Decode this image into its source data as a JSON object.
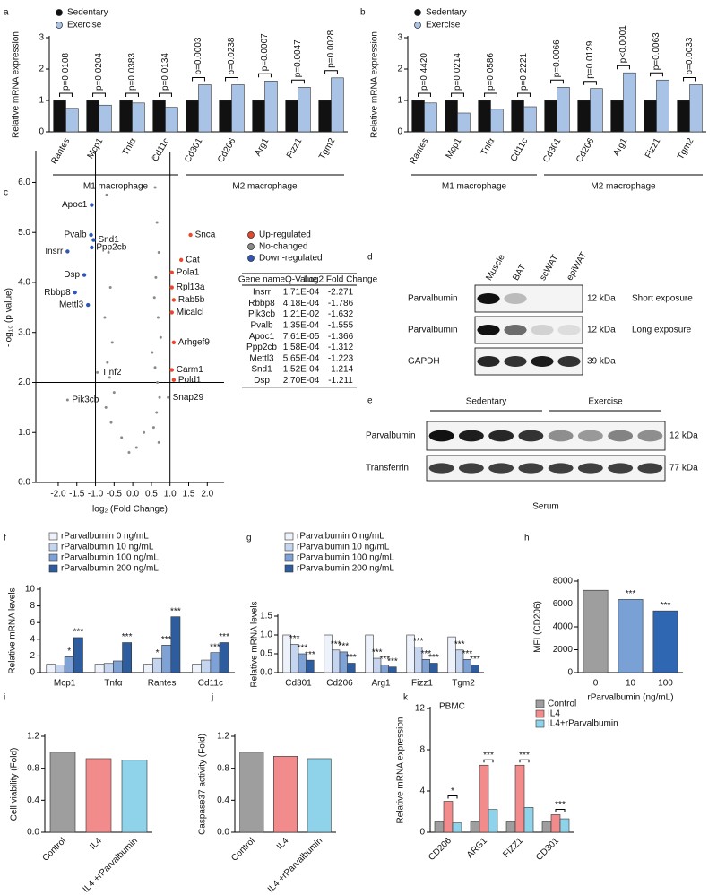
{
  "chart_data": [
    {
      "type": "bar",
      "panel": "a",
      "ylabel": "Relative mRNA expression",
      "groups": [
        {
          "label": "M1 macrophage",
          "categories": [
            "Rantes",
            "Mcp1",
            "Tnfα",
            "Cd11c"
          ]
        },
        {
          "label": "M2 macrophage",
          "categories": [
            "Cd301",
            "Cd206",
            "Arg1",
            "Fizz1",
            "Tgm2"
          ]
        }
      ],
      "series": [
        {
          "name": "Sedentary",
          "color": "#111111",
          "values": [
            1,
            1,
            1,
            1,
            1,
            1,
            1,
            1,
            1
          ]
        },
        {
          "name": "Exercise",
          "color": "#a9c3e6",
          "values": [
            0.75,
            0.85,
            0.92,
            0.78,
            1.5,
            1.5,
            1.62,
            1.42,
            1.72
          ]
        }
      ],
      "annotations": [
        "p=0.0108",
        "p=0.0204",
        "p=0.0383",
        "p=0.0134",
        "p=0.0003",
        "p=0.0238",
        "p=0.0007",
        "p=0.0047",
        "p=0.0028"
      ],
      "ylim": [
        0,
        3
      ],
      "yticks": [
        0,
        1,
        2,
        3
      ]
    },
    {
      "type": "bar",
      "panel": "b",
      "ylabel": "Relative mRNA expression",
      "groups": [
        {
          "label": "M1 macrophage",
          "categories": [
            "Rantes",
            "Mcp1",
            "Tnfα",
            "Cd11c"
          ]
        },
        {
          "label": "M2 macrophage",
          "categories": [
            "Cd301",
            "Cd206",
            "Arg1",
            "Fizz1",
            "Tgm2"
          ]
        }
      ],
      "series": [
        {
          "name": "Sedentary",
          "color": "#111111",
          "values": [
            1,
            1,
            1,
            1,
            1,
            1,
            1,
            1,
            1
          ]
        },
        {
          "name": "Exercise",
          "color": "#a9c3e6",
          "values": [
            0.92,
            0.6,
            0.72,
            0.8,
            1.42,
            1.38,
            1.88,
            1.65,
            1.5
          ]
        }
      ],
      "annotations": [
        "p=0.4420",
        "p=0.0214",
        "p=0.0586",
        "p=0.2221",
        "p=0.0066",
        "p=0.0129",
        "p<0.0001",
        "p=0.0063",
        "p=0.0033"
      ],
      "ylim": [
        0,
        3
      ],
      "yticks": [
        0,
        1,
        2,
        3
      ]
    },
    {
      "type": "scatter",
      "panel": "c",
      "xlabel": "log₂ (Fold Change)",
      "ylabel": "-log₁₀ (p value)",
      "highlight": "Pvalb",
      "xlim": [
        -2.6,
        2.45
      ],
      "xticks": [
        {
          "value": -2,
          "label": "-2.0"
        },
        -1.5,
        {
          "value": -1,
          "label": "-1.0"
        },
        -0.5,
        {
          "value": 0,
          "label": "0.0"
        },
        0.5,
        {
          "value": 1,
          "label": "1.0"
        },
        1.5,
        {
          "value": 2,
          "label": "2.0"
        }
      ],
      "ylim": [
        0,
        6.6
      ],
      "yticks": [
        {
          "value": 0,
          "label": "0.0"
        },
        {
          "value": 1,
          "label": "1.0"
        },
        {
          "value": 2,
          "label": "2.0"
        },
        {
          "value": 3,
          "label": "3.0"
        },
        {
          "value": 4,
          "label": "4.0"
        },
        {
          "value": 5,
          "label": "5.0"
        },
        {
          "value": 6,
          "label": "6.0"
        }
      ],
      "cutoff_x": [
        -1,
        1
      ],
      "cutoff_y": 2,
      "series": [
        {
          "name": "Up-regulated",
          "color": "#e8472c",
          "x": [
            1.55,
            1.3,
            1.05,
            1.05,
            1.1,
            1.05,
            1.1,
            1.05,
            1.1
          ],
          "values": [
            4.95,
            4.45,
            4.2,
            3.9,
            3.65,
            3.4,
            2.8,
            2.25,
            2.05
          ],
          "labels": [
            "Snca",
            "Cat",
            "Pola1",
            "Rpl13a",
            "Rab5b",
            "Micalcl",
            "Arhgef9",
            "Carm1",
            "Pold1"
          ]
        },
        {
          "name": "No-changed",
          "color": "#8a8a8a",
          "x": [
            -0.7,
            -0.65,
            -0.6,
            -0.75,
            -0.55,
            -0.68,
            -0.62,
            -0.5,
            -0.72,
            -0.58,
            -0.3,
            -0.1,
            0.1,
            0.3,
            0.55,
            0.6,
            0.65,
            0.7,
            0.62,
            0.58,
            0.68,
            0.75,
            0.52,
            0.6,
            0.66,
            0.72,
            0.64,
            0.56,
            0.7,
            0.95,
            -1.75,
            -0.95
          ],
          "values": [
            5.75,
            4.6,
            3.9,
            3.3,
            2.8,
            2.4,
            2.1,
            1.8,
            1.5,
            1.2,
            0.9,
            0.6,
            0.7,
            1,
            6.5,
            5.9,
            5.2,
            4.6,
            4.1,
            3.7,
            3.3,
            2.9,
            2.6,
            2.3,
            2,
            1.7,
            1.4,
            1.1,
            0.8,
            1.7,
            1.65,
            2.2
          ],
          "labels": [
            null,
            null,
            null,
            null,
            null,
            null,
            null,
            null,
            null,
            null,
            null,
            null,
            null,
            null,
            null,
            null,
            null,
            null,
            null,
            null,
            null,
            null,
            null,
            null,
            null,
            null,
            null,
            null,
            null,
            "Snap29",
            "Pik3cb",
            "Tinf2"
          ]
        },
        {
          "name": "Down-regulated",
          "color": "#2f55b5",
          "x": [
            -1.1,
            -1.12,
            -1.05,
            -1.75,
            -1.1,
            -1.3,
            -1.55,
            -1.2
          ],
          "values": [
            5.55,
            4.95,
            4.85,
            4.62,
            4.7,
            4.15,
            3.8,
            3.55
          ],
          "labels": [
            "Apoc1",
            "Pvalb",
            "Snd1",
            "Insrr",
            "Ppp2cb",
            "Dsp",
            "Rbbp8",
            "Mettl3"
          ]
        }
      ],
      "table": {
        "columns": [
          "Gene name",
          "Q-Value",
          "Log2 Fold Change"
        ],
        "rows": [
          [
            "Insrr",
            "1.71E-04",
            "-2.271"
          ],
          [
            "Rbbp8",
            "4.18E-04",
            "-1.786"
          ],
          [
            "Pik3cb",
            "1.21E-02",
            "-1.632"
          ],
          [
            "Pvalb",
            "1.35E-04",
            "-1.555"
          ],
          [
            "Apoc1",
            "7.61E-05",
            "-1.366"
          ],
          [
            "Ppp2cb",
            "1.58E-04",
            "-1.312"
          ],
          [
            "Mettl3",
            "5.65E-04",
            "-1.223"
          ],
          [
            "Snd1",
            "1.52E-04",
            "-1.214"
          ],
          [
            "Dsp",
            "2.70E-04",
            "-1.211"
          ]
        ]
      }
    },
    {
      "type": "blot",
      "panel": "d",
      "lanes": [
        "Muscle",
        "BAT",
        "scWAT",
        "epiWAT"
      ],
      "rows": [
        {
          "label": "Parvalbumin",
          "size": "12 kDa",
          "note": "Short exposure"
        },
        {
          "label": "Parvalbumin",
          "size": "12 kDa",
          "note": "Long exposure"
        },
        {
          "label": "GAPDH",
          "size": "39 kDa"
        }
      ]
    },
    {
      "type": "blot",
      "panel": "e",
      "groups": [
        "Sedentary",
        "Exercise"
      ],
      "rows": [
        {
          "label": "Parvalbumin",
          "size": "12 kDa"
        },
        {
          "label": "Transferrin",
          "size": "77 kDa"
        }
      ],
      "caption": "Serum"
    },
    {
      "type": "bar",
      "panel": "f",
      "ylabel": "Relative  mRNA levels",
      "categories": [
        "Mcp1",
        "Tnfα",
        "Rantes",
        "Cd11c"
      ],
      "series": [
        {
          "name": "rParvalbumin 0 ng/mL",
          "color": "#eef2fa",
          "values": [
            1,
            1,
            1,
            1
          ]
        },
        {
          "name": "rParvalbumin 10 ng/mL",
          "color": "#c5d5ef",
          "values": [
            0.9,
            1.1,
            1.7,
            1.5
          ],
          "significance": [
            null,
            null,
            "*",
            null
          ]
        },
        {
          "name": "rParvalbumin 100 ng/mL",
          "color": "#7fa2d6",
          "values": [
            1.9,
            1.4,
            3.3,
            2.4
          ],
          "significance": [
            "*",
            null,
            "***",
            "***"
          ]
        },
        {
          "name": "rParvalbumin 200 ng/mL",
          "color": "#2e5d9f",
          "values": [
            4.2,
            3.6,
            6.7,
            3.6
          ],
          "significance": [
            "***",
            "***",
            "***",
            "***"
          ]
        }
      ],
      "ylim": [
        0,
        10
      ],
      "yticks": [
        0,
        2,
        4,
        6,
        8,
        10
      ]
    },
    {
      "type": "bar",
      "panel": "g",
      "ylabel": "Relative mRNA  levels",
      "categories": [
        "Cd301",
        "Cd206",
        "Arg1",
        "Fizz1",
        "Tgm2"
      ],
      "series": [
        {
          "name": "rParvalbumin 0 ng/mL",
          "color": "#eef2fa",
          "values": [
            1,
            1,
            1,
            1,
            0.95
          ]
        },
        {
          "name": "rParvalbumin 10 ng/mL",
          "color": "#c5d5ef",
          "values": [
            0.75,
            0.6,
            0.38,
            0.68,
            0.6
          ],
          "significance": [
            "***",
            "***",
            "***",
            "***",
            "***"
          ]
        },
        {
          "name": "rParvalbumin 100 ng/mL",
          "color": "#7fa2d6",
          "values": [
            0.5,
            0.55,
            0.2,
            0.35,
            0.35
          ],
          "significance": [
            "***",
            "***",
            "***",
            "***",
            "***"
          ]
        },
        {
          "name": "rParvalbumin 200 ng/mL",
          "color": "#2e5d9f",
          "values": [
            0.33,
            0.25,
            0.15,
            0.25,
            0.2
          ],
          "significance": [
            "***",
            "***",
            "***",
            "***",
            "***"
          ]
        }
      ],
      "ylim": [
        0,
        1.5
      ],
      "yticks": [
        {
          "value": 0,
          "label": "0.0"
        },
        0.5,
        {
          "value": 1,
          "label": "1.0"
        },
        1.5
      ]
    },
    {
      "type": "bar",
      "panel": "h",
      "ylabel": "MFI (CD206)",
      "xlabel": "rParvalbumin (ng/mL)",
      "categories": [
        "0",
        "10",
        "100"
      ],
      "series": [
        {
          "colors": [
            "#9e9e9e",
            "#79a1d6",
            "#2f67b2"
          ],
          "values": [
            7200,
            6400,
            5400
          ],
          "significance": [
            null,
            "***",
            "***"
          ]
        }
      ],
      "ylim": [
        0,
        8000
      ],
      "yticks": [
        0,
        2000,
        4000,
        6000,
        8000
      ]
    },
    {
      "type": "bar",
      "panel": "i",
      "ylabel": "Cell viability (Fold)",
      "categories": [
        "Control",
        "IL4",
        "IL4 +rParvalbumin"
      ],
      "series": [
        {
          "colors": [
            "#9e9e9e",
            "#f28b8b",
            "#8fd3ea"
          ],
          "values": [
            1,
            0.92,
            0.9
          ]
        }
      ],
      "ylim": [
        0,
        1.2
      ],
      "yticks": [
        {
          "value": 0,
          "label": "0.0"
        },
        0.4,
        0.8,
        1.2
      ]
    },
    {
      "type": "bar",
      "panel": "j",
      "ylabel": "Caspase37 activity (Fold)",
      "categories": [
        "Control",
        "IL4",
        "IL4 +rParvalbumin"
      ],
      "series": [
        {
          "colors": [
            "#9e9e9e",
            "#f28b8b",
            "#8fd3ea"
          ],
          "values": [
            1,
            0.95,
            0.92
          ]
        }
      ],
      "ylim": [
        0,
        1.2
      ],
      "yticks": [
        {
          "value": 0,
          "label": "0.0"
        },
        0.4,
        0.8,
        1.2
      ]
    },
    {
      "type": "bar",
      "panel": "k",
      "ylabel": "Relative mRNA expression",
      "note": "PBMC",
      "categories": [
        "CD206",
        "ARG1",
        "FIZZ1",
        "CD301"
      ],
      "series": [
        {
          "name": "Control",
          "color": "#9e9e9e",
          "values": [
            1,
            1,
            1,
            1
          ]
        },
        {
          "name": "IL4",
          "color": "#f28b8b",
          "values": [
            3,
            6.5,
            6.5,
            1.7
          ]
        },
        {
          "name": "IL4+rParvalbumin",
          "color": "#8fd3ea",
          "values": [
            0.9,
            2.2,
            2.4,
            1.3
          ]
        }
      ],
      "annotations": [
        "*",
        "***",
        "***",
        "***"
      ],
      "ylim": [
        0,
        12
      ],
      "yticks": [
        0,
        4,
        8,
        12
      ]
    }
  ]
}
